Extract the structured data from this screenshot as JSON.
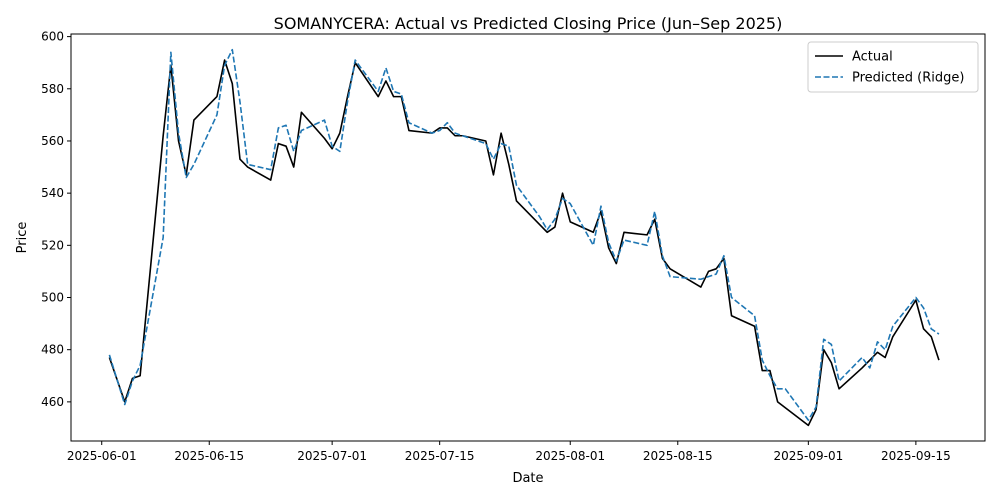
{
  "chart_data": {
    "type": "line",
    "title": "SOMANYCERA: Actual vs Predicted Closing Price (Jun–Sep 2025)",
    "xlabel": "Date",
    "ylabel": "Price",
    "xlim": [
      "2025-05-28",
      "2025-09-24"
    ],
    "ylim": [
      445,
      601
    ],
    "x_ticks": [
      "2025-06-01",
      "2025-06-15",
      "2025-07-01",
      "2025-07-15",
      "2025-08-01",
      "2025-08-15",
      "2025-09-01",
      "2025-09-15"
    ],
    "y_ticks": [
      460,
      480,
      500,
      520,
      540,
      560,
      580,
      600
    ],
    "grid": false,
    "legend_position": "top-right",
    "series": [
      {
        "name": "Actual",
        "color": "#000000",
        "style": "solid",
        "points": [
          [
            "2025-06-02",
            477
          ],
          [
            "2025-06-04",
            460
          ],
          [
            "2025-06-05",
            469
          ],
          [
            "2025-06-06",
            470
          ],
          [
            "2025-06-09",
            562
          ],
          [
            "2025-06-10",
            589
          ],
          [
            "2025-06-11",
            560
          ],
          [
            "2025-06-12",
            547
          ],
          [
            "2025-06-13",
            568
          ],
          [
            "2025-06-16",
            577
          ],
          [
            "2025-06-17",
            591
          ],
          [
            "2025-06-18",
            582
          ],
          [
            "2025-06-19",
            553
          ],
          [
            "2025-06-20",
            550
          ],
          [
            "2025-06-23",
            545
          ],
          [
            "2025-06-24",
            559
          ],
          [
            "2025-06-25",
            558
          ],
          [
            "2025-06-26",
            550
          ],
          [
            "2025-06-27",
            571
          ],
          [
            "2025-06-30",
            561
          ],
          [
            "2025-07-01",
            557
          ],
          [
            "2025-07-02",
            563
          ],
          [
            "2025-07-03",
            577
          ],
          [
            "2025-07-04",
            590
          ],
          [
            "2025-07-07",
            577
          ],
          [
            "2025-07-08",
            583
          ],
          [
            "2025-07-09",
            577
          ],
          [
            "2025-07-10",
            577
          ],
          [
            "2025-07-11",
            564
          ],
          [
            "2025-07-14",
            563
          ],
          [
            "2025-07-15",
            565
          ],
          [
            "2025-07-16",
            565
          ],
          [
            "2025-07-17",
            562
          ],
          [
            "2025-07-18",
            562
          ],
          [
            "2025-07-21",
            560
          ],
          [
            "2025-07-22",
            547
          ],
          [
            "2025-07-23",
            563
          ],
          [
            "2025-07-24",
            551
          ],
          [
            "2025-07-25",
            537
          ],
          [
            "2025-07-28",
            528
          ],
          [
            "2025-07-29",
            525
          ],
          [
            "2025-07-30",
            527
          ],
          [
            "2025-07-31",
            540
          ],
          [
            "2025-08-01",
            529
          ],
          [
            "2025-08-04",
            525
          ],
          [
            "2025-08-05",
            533
          ],
          [
            "2025-08-06",
            519
          ],
          [
            "2025-08-07",
            513
          ],
          [
            "2025-08-08",
            525
          ],
          [
            "2025-08-11",
            524
          ],
          [
            "2025-08-12",
            530
          ],
          [
            "2025-08-13",
            515
          ],
          [
            "2025-08-14",
            511
          ],
          [
            "2025-08-18",
            504
          ],
          [
            "2025-08-19",
            510
          ],
          [
            "2025-08-20",
            511
          ],
          [
            "2025-08-21",
            515
          ],
          [
            "2025-08-22",
            493
          ],
          [
            "2025-08-25",
            489
          ],
          [
            "2025-08-26",
            472
          ],
          [
            "2025-08-27",
            472
          ],
          [
            "2025-08-28",
            460
          ],
          [
            "2025-09-01",
            451
          ],
          [
            "2025-09-02",
            457
          ],
          [
            "2025-09-03",
            480
          ],
          [
            "2025-09-04",
            475
          ],
          [
            "2025-09-05",
            465
          ],
          [
            "2025-09-08",
            473
          ],
          [
            "2025-09-10",
            479
          ],
          [
            "2025-09-11",
            477
          ],
          [
            "2025-09-12",
            485
          ],
          [
            "2025-09-15",
            499
          ],
          [
            "2025-09-16",
            488
          ],
          [
            "2025-09-17",
            485
          ],
          [
            "2025-09-18",
            476
          ]
        ]
      },
      {
        "name": "Predicted (Ridge)",
        "color": "#1f77b4",
        "style": "dashed",
        "points": [
          [
            "2025-06-02",
            478
          ],
          [
            "2025-06-04",
            459
          ],
          [
            "2025-06-05",
            468
          ],
          [
            "2025-06-06",
            474
          ],
          [
            "2025-06-09",
            523
          ],
          [
            "2025-06-10",
            594
          ],
          [
            "2025-06-11",
            563
          ],
          [
            "2025-06-12",
            546
          ],
          [
            "2025-06-13",
            551
          ],
          [
            "2025-06-16",
            570
          ],
          [
            "2025-06-17",
            589
          ],
          [
            "2025-06-18",
            595
          ],
          [
            "2025-06-19",
            575
          ],
          [
            "2025-06-20",
            551
          ],
          [
            "2025-06-23",
            549
          ],
          [
            "2025-06-24",
            565
          ],
          [
            "2025-06-25",
            566
          ],
          [
            "2025-06-26",
            556
          ],
          [
            "2025-06-27",
            564
          ],
          [
            "2025-06-30",
            568
          ],
          [
            "2025-07-01",
            558
          ],
          [
            "2025-07-02",
            556
          ],
          [
            "2025-07-03",
            575
          ],
          [
            "2025-07-04",
            591
          ],
          [
            "2025-07-07",
            579
          ],
          [
            "2025-07-08",
            588
          ],
          [
            "2025-07-09",
            579
          ],
          [
            "2025-07-10",
            578
          ],
          [
            "2025-07-11",
            567
          ],
          [
            "2025-07-14",
            563
          ],
          [
            "2025-07-15",
            564
          ],
          [
            "2025-07-16",
            567
          ],
          [
            "2025-07-17",
            563
          ],
          [
            "2025-07-18",
            562
          ],
          [
            "2025-07-21",
            559
          ],
          [
            "2025-07-22",
            553
          ],
          [
            "2025-07-23",
            559
          ],
          [
            "2025-07-24",
            558
          ],
          [
            "2025-07-25",
            543
          ],
          [
            "2025-07-28",
            531
          ],
          [
            "2025-07-29",
            526
          ],
          [
            "2025-07-30",
            530
          ],
          [
            "2025-07-31",
            538
          ],
          [
            "2025-08-01",
            536
          ],
          [
            "2025-08-04",
            520
          ],
          [
            "2025-08-05",
            535
          ],
          [
            "2025-08-06",
            521
          ],
          [
            "2025-08-07",
            514
          ],
          [
            "2025-08-08",
            522
          ],
          [
            "2025-08-11",
            520
          ],
          [
            "2025-08-12",
            533
          ],
          [
            "2025-08-13",
            516
          ],
          [
            "2025-08-14",
            508
          ],
          [
            "2025-08-18",
            507
          ],
          [
            "2025-08-19",
            508
          ],
          [
            "2025-08-20",
            509
          ],
          [
            "2025-08-21",
            516
          ],
          [
            "2025-08-22",
            500
          ],
          [
            "2025-08-25",
            493
          ],
          [
            "2025-08-26",
            476
          ],
          [
            "2025-08-27",
            470
          ],
          [
            "2025-08-28",
            465
          ],
          [
            "2025-08-29",
            465
          ],
          [
            "2025-09-01",
            453
          ],
          [
            "2025-09-02",
            458
          ],
          [
            "2025-09-03",
            484
          ],
          [
            "2025-09-04",
            482
          ],
          [
            "2025-09-05",
            468
          ],
          [
            "2025-09-08",
            477
          ],
          [
            "2025-09-09",
            473
          ],
          [
            "2025-09-10",
            483
          ],
          [
            "2025-09-11",
            480
          ],
          [
            "2025-09-12",
            489
          ],
          [
            "2025-09-15",
            500
          ],
          [
            "2025-09-16",
            496
          ],
          [
            "2025-09-17",
            488
          ],
          [
            "2025-09-18",
            486
          ]
        ]
      }
    ]
  }
}
